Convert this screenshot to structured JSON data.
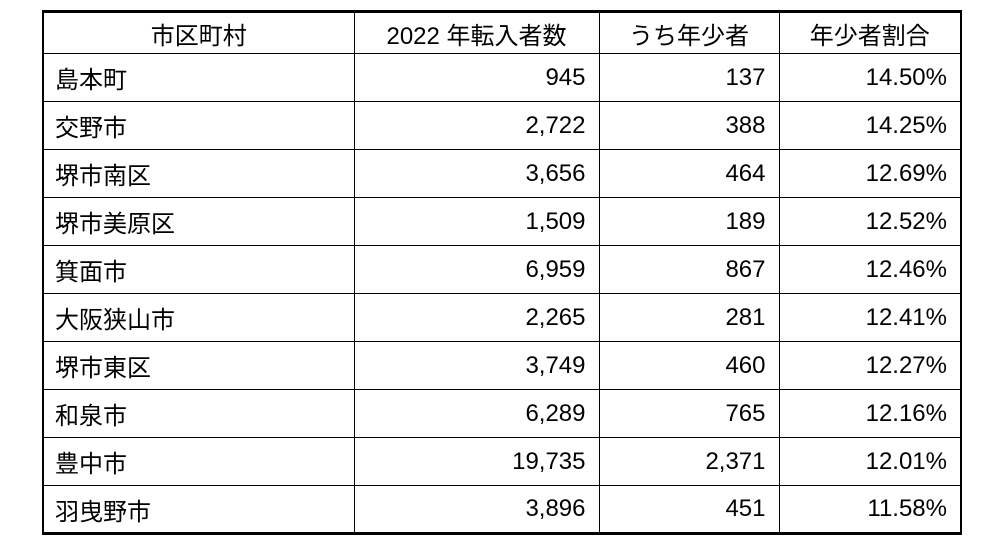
{
  "page": {
    "background": "#ffffff"
  },
  "table": {
    "colors": {
      "border": "#000000",
      "text": "#000000",
      "background": "#ffffff"
    },
    "columns": [
      {
        "id": "municipality",
        "label": "市区町村"
      },
      {
        "id": "movers_2022",
        "label": "2022 年転入者数"
      },
      {
        "id": "minors",
        "label": "うち年少者"
      },
      {
        "id": "minor_ratio",
        "label": "年少者割合"
      }
    ],
    "rows": [
      [
        "島本町",
        "945",
        "137",
        "14.50%"
      ],
      [
        "交野市",
        "2,722",
        "388",
        "14.25%"
      ],
      [
        "堺市南区",
        "3,656",
        "464",
        "12.69%"
      ],
      [
        "堺市美原区",
        "1,509",
        "189",
        "12.52%"
      ],
      [
        "箕面市",
        "6,959",
        "867",
        "12.46%"
      ],
      [
        "大阪狭山市",
        "2,265",
        "281",
        "12.41%"
      ],
      [
        "堺市東区",
        "3,749",
        "460",
        "12.27%"
      ],
      [
        "和泉市",
        "6,289",
        "765",
        "12.16%"
      ],
      [
        "豊中市",
        "19,735",
        "2,371",
        "12.01%"
      ],
      [
        "羽曳野市",
        "3,896",
        "451",
        "11.58%"
      ]
    ]
  }
}
